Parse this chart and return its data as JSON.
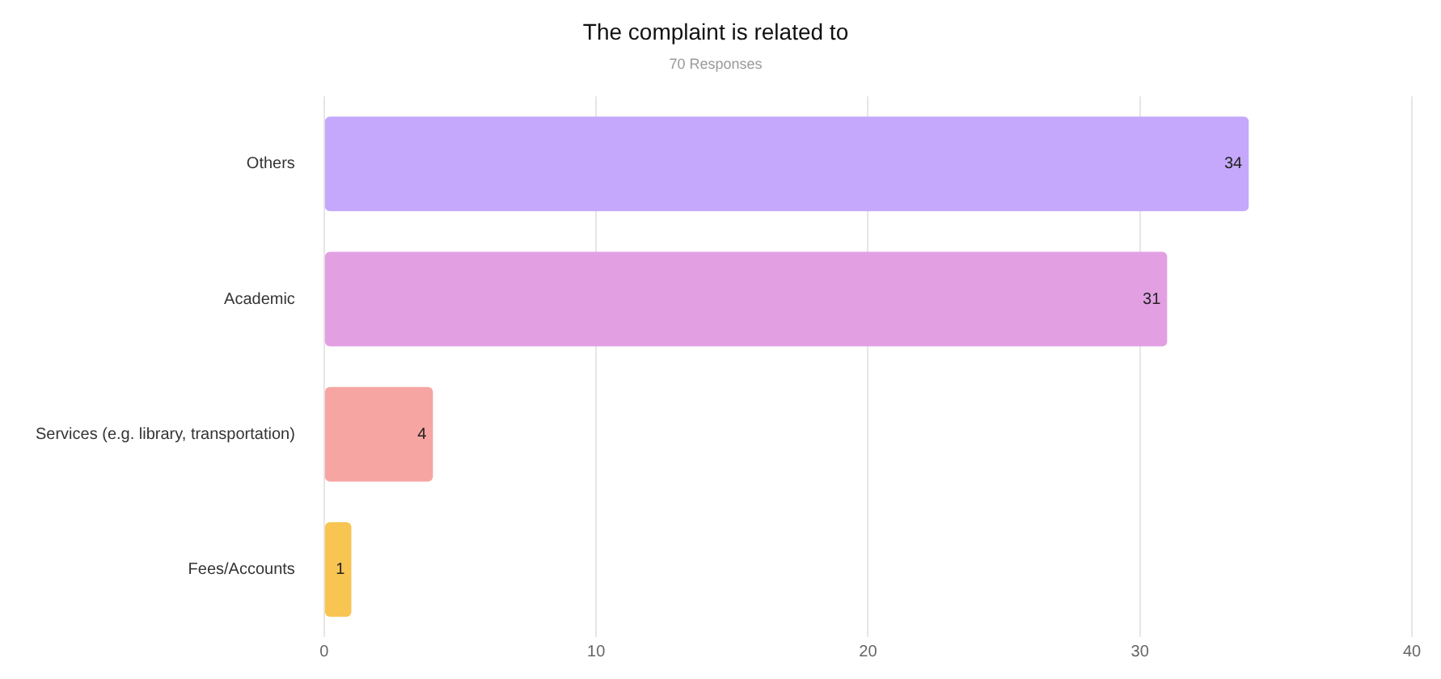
{
  "chart_data": {
    "type": "bar",
    "orientation": "horizontal",
    "title": "The complaint is related to",
    "subtitle": "70 Responses",
    "categories": [
      "Others",
      "Academic",
      "Services (e.g. library, transportation)",
      "Fees/Accounts"
    ],
    "values": [
      34,
      31,
      4,
      1
    ],
    "colors": [
      "#c5a8fc",
      "#e2a0e3",
      "#f6a5a3",
      "#f8c552"
    ],
    "xlim": [
      0,
      40
    ],
    "xticks": [
      0,
      10,
      20,
      30,
      40
    ],
    "grid": "x",
    "data_labels": true,
    "legend": false
  }
}
